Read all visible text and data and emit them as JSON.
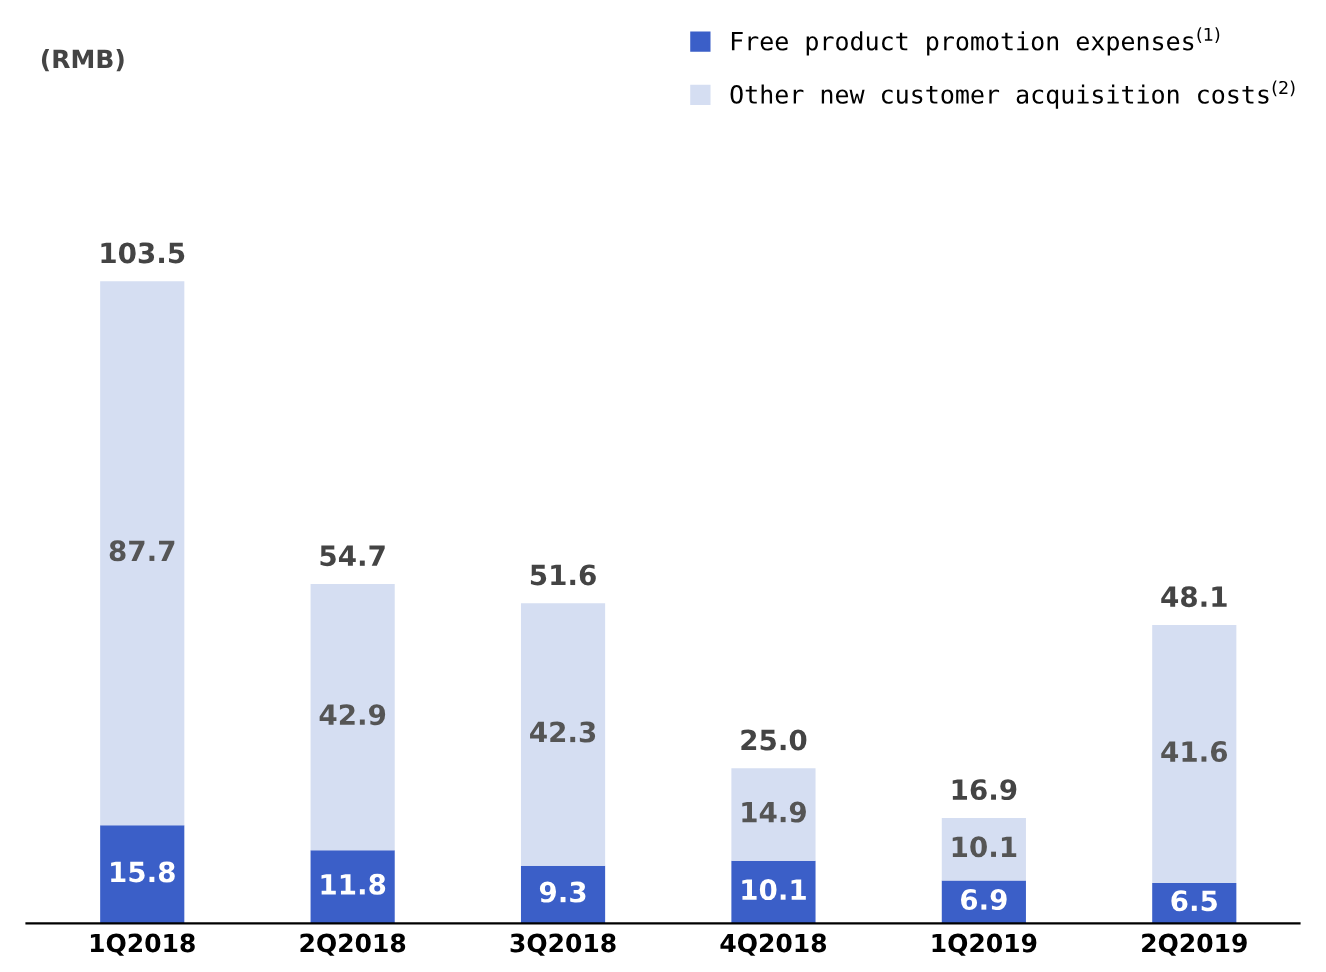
{
  "chart_data": {
    "type": "bar",
    "stacked": true,
    "annotations": [
      "(RMB)"
    ],
    "categories": [
      "1Q2018",
      "2Q2018",
      "3Q2018",
      "4Q2018",
      "1Q2019",
      "2Q2019"
    ],
    "series": [
      {
        "name": "Free product promotion expenses$^{(1)}$",
        "color": "#3b5fc8",
        "values": [
          15.8,
          11.8,
          9.3,
          10.1,
          6.9,
          6.5
        ]
      },
      {
        "name": "Other new customer acquisition costs$^{(2)}$",
        "color": "#d5def2",
        "values": [
          87.7,
          42.9,
          42.3,
          14.9,
          10.1,
          41.6
        ]
      }
    ],
    "data_labels": true,
    "totals": [
      "103.5",
      "54.7",
      "51.6",
      "25.0",
      "16.9",
      "48.1"
    ],
    "legend": "top right",
    "grid": false
  }
}
